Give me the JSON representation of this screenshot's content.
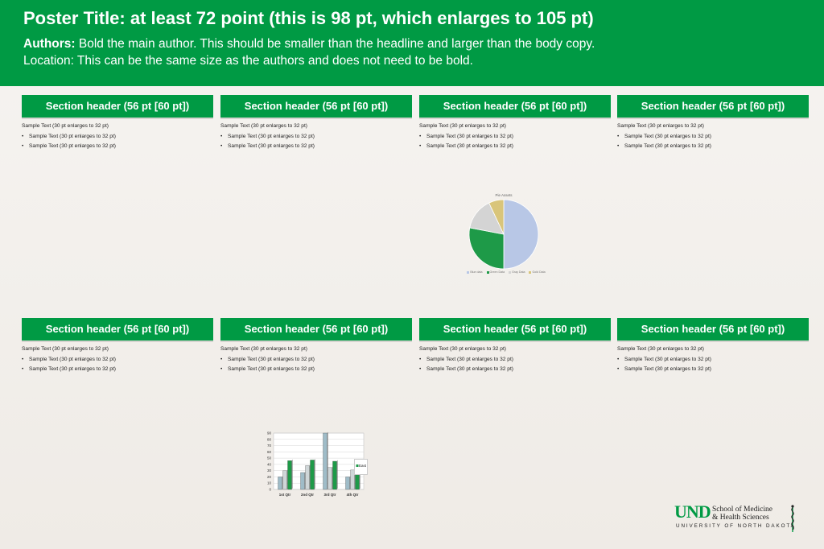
{
  "header": {
    "title": "Poster Title: at least 72 point (this is 98 pt, which enlarges to 105 pt)",
    "authors_label": "Authors:",
    "authors_text": " Bold the main author. This should be smaller than the headline and larger than the body copy.",
    "location": "Location: This can be the same size as the authors and does not need to be bold."
  },
  "sections": [
    {
      "header": "Section header (56 pt [60 pt])",
      "lead": "Sample Text (30 pt enlarges to 32 pt)",
      "bullets": [
        "Sample Text (30 pt enlarges to 32 pt)",
        "Sample Text (30 pt enlarges to 32 pt)"
      ]
    },
    {
      "header": "Section header (56 pt [60 pt])",
      "lead": "Sample Text (30 pt enlarges to 32 pt)",
      "bullets": [
        "Sample Text (30 pt enlarges to 32 pt)",
        "Sample Text (30 pt enlarges to 32 pt)"
      ]
    },
    {
      "header": "Section header (56 pt [60 pt])",
      "lead": "Sample Text (30 pt enlarges to 32 pt)",
      "bullets": [
        "Sample Text (30 pt enlarges to 32 pt)",
        "Sample Text (30 pt enlarges to 32 pt)"
      ]
    },
    {
      "header": "Section header (56 pt [60 pt])",
      "lead": "Sample Text (30 pt enlarges to 32 pt)",
      "bullets": [
        "Sample Text (30 pt enlarges to 32 pt)",
        "Sample Text (30 pt enlarges to 32 pt)"
      ]
    },
    {
      "header": "Section header (56 pt [60 pt])",
      "lead": "Sample Text (30 pt enlarges to 32 pt)",
      "bullets": [
        "Sample Text (30 pt enlarges to 32 pt)",
        "Sample Text (30 pt enlarges to 32 pt)"
      ]
    },
    {
      "header": "Section header (56 pt [60 pt])",
      "lead": "Sample Text (30 pt enlarges to 32 pt)",
      "bullets": [
        "Sample Text (30 pt enlarges to 32 pt)",
        "Sample Text (30 pt enlarges to 32 pt)"
      ]
    },
    {
      "header": "Section header (56 pt [60 pt])",
      "lead": "Sample Text (30 pt enlarges to 32 pt)",
      "bullets": [
        "Sample Text (30 pt enlarges to 32 pt)",
        "Sample Text (30 pt enlarges to 32 pt)"
      ]
    },
    {
      "header": "Section header (56 pt [60 pt])",
      "lead": "Sample Text (30 pt enlarges to 32 pt)",
      "bullets": [
        "Sample Text (30 pt enlarges to 32 pt)",
        "Sample Text (30 pt enlarges to 32 pt)"
      ]
    }
  ],
  "chart_data": [
    {
      "type": "pie",
      "title": "Pie Assets",
      "slices": [
        {
          "label": "Blue data",
          "value": 50,
          "color": "#b8c7e6"
        },
        {
          "label": "Green Data",
          "value": 28,
          "color": "#1e9a48"
        },
        {
          "label": "Gray Data",
          "value": 15,
          "color": "#d4d4d4"
        },
        {
          "label": "Gold Data",
          "value": 7,
          "color": "#d9c57a"
        }
      ]
    },
    {
      "type": "bar",
      "categories": [
        "1st Qtr",
        "2nd Qtr",
        "3rd Qtr",
        "4th Qtr"
      ],
      "ylim": [
        0,
        90
      ],
      "yticks": [
        0,
        10,
        20,
        30,
        40,
        50,
        60,
        70,
        80,
        90
      ],
      "series": [
        {
          "name": "",
          "values": [
            20,
            27,
            90,
            20
          ],
          "color": "#9fbcc8"
        },
        {
          "name": "",
          "values": [
            30,
            38,
            35,
            31
          ],
          "color": "#cfd6d8"
        },
        {
          "name": "East",
          "values": [
            46,
            47,
            45,
            43
          ],
          "color": "#1e9a48"
        }
      ],
      "grid": true,
      "legend": "right"
    }
  ],
  "logo": {
    "und": "UND",
    "line1": "School of Medicine",
    "line2": "& Health Sciences",
    "line3": "UNIVERSITY OF NORTH DAKOTA"
  },
  "colors": {
    "brand_green": "#009a44"
  }
}
